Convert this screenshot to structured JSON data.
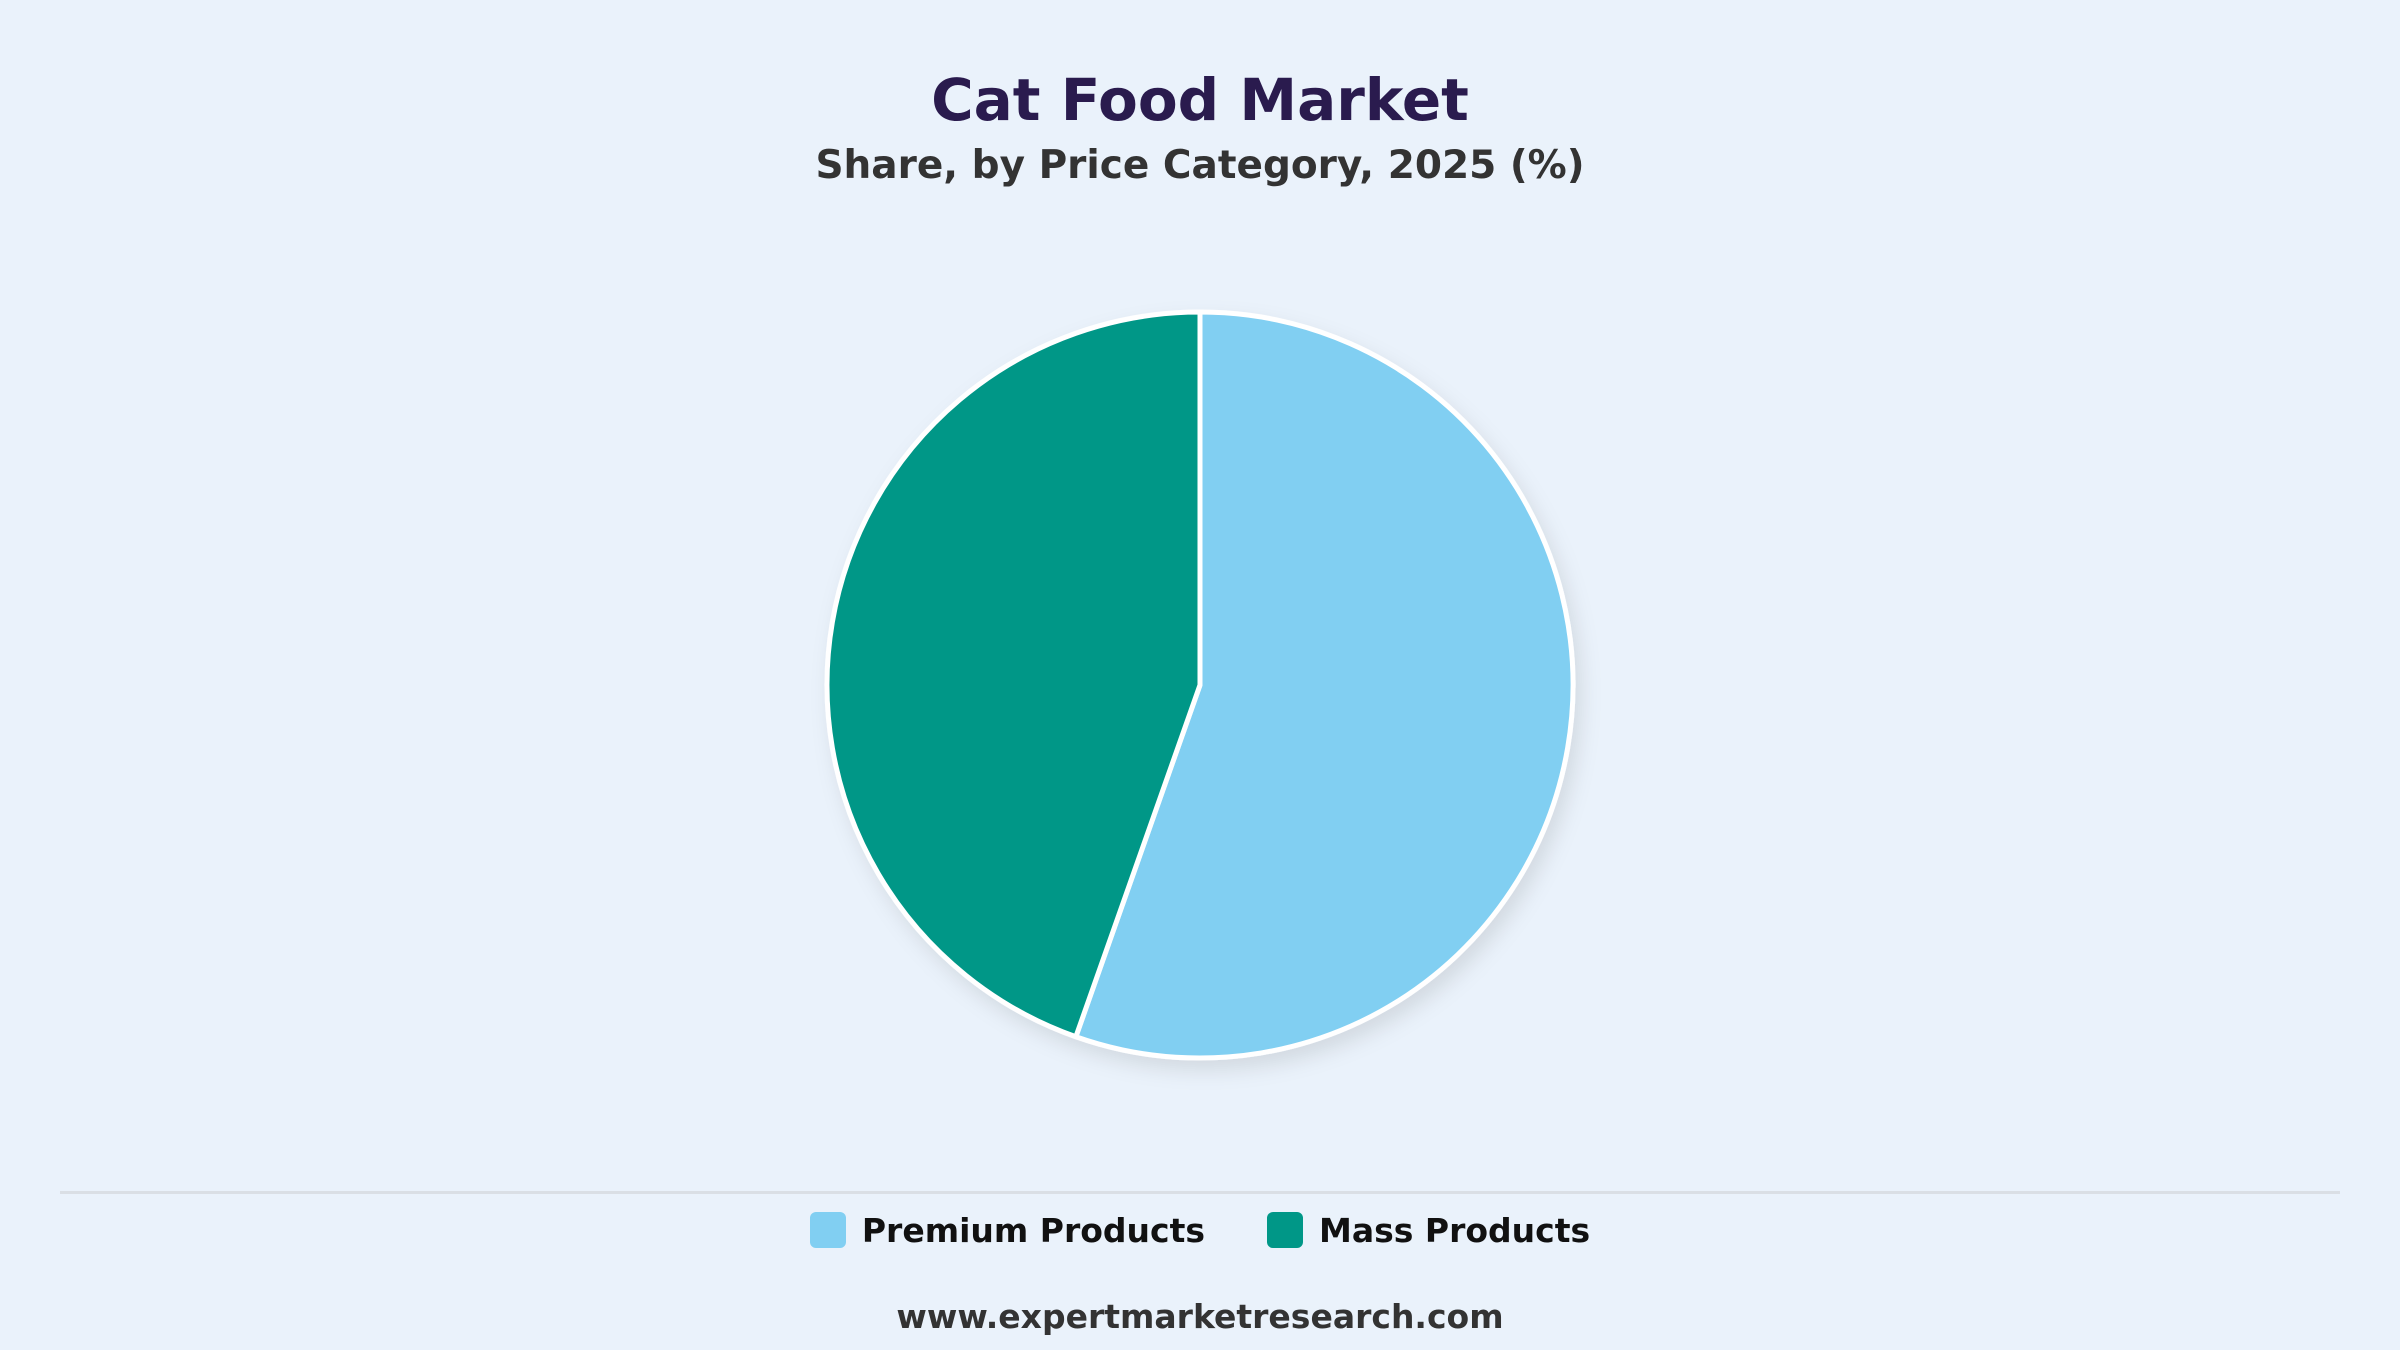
{
  "chart_data": {
    "type": "pie",
    "title": "Cat Food Market",
    "subtitle": "Share, by Price Category, 2025 (%)",
    "slices": [
      {
        "name": "Premium Products",
        "value": 55.4,
        "color": "#81CFF2"
      },
      {
        "name": "Mass Products",
        "value": 44.6,
        "color": "#009787"
      }
    ],
    "start_angle": "12 o'clock",
    "direction": "clockwise",
    "legend_position": "bottom-center",
    "data_labels": false
  },
  "colors": {
    "background": "#EAF2FB",
    "title": "#2A1B4E",
    "slice_border": "#FFFFFF"
  },
  "footer": {
    "source": "www.expertmarketresearch.com"
  }
}
